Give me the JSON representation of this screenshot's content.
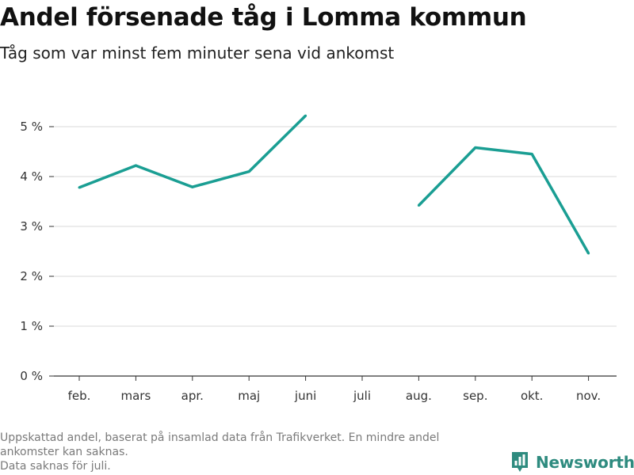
{
  "title": "Andel försenade tåg i Lomma kommun",
  "subtitle": "Tåg som var minst fem minuter sena vid ankomst",
  "footnote": {
    "line1": "Uppskattad andel, baserat på insamlad data från Trafikverket. En mindre andel",
    "line2": "ankomster kan saknas.",
    "line3": "Data saknas för juli."
  },
  "brand": {
    "name": "Newsworthy",
    "icon": "newsworthy-logo-icon",
    "color": "#2e8b7f"
  },
  "chart_data": {
    "type": "line",
    "categories": [
      "feb.",
      "mars",
      "apr.",
      "maj",
      "juni",
      "juli",
      "aug.",
      "sep.",
      "okt.",
      "nov."
    ],
    "series": [
      {
        "values": [
          3.78,
          4.22,
          3.79,
          4.1,
          5.22,
          null,
          3.42,
          4.58,
          4.45,
          2.46
        ]
      }
    ],
    "ylim": [
      0,
      5
    ],
    "yticks": [
      0,
      1,
      2,
      3,
      4,
      5
    ],
    "ytick_labels": [
      "0 %",
      "1 %",
      "2 %",
      "3 %",
      "4 %",
      "5 %"
    ],
    "grid": true,
    "line_color": "#1a9e93",
    "grid_color": "#d9d9d9"
  }
}
